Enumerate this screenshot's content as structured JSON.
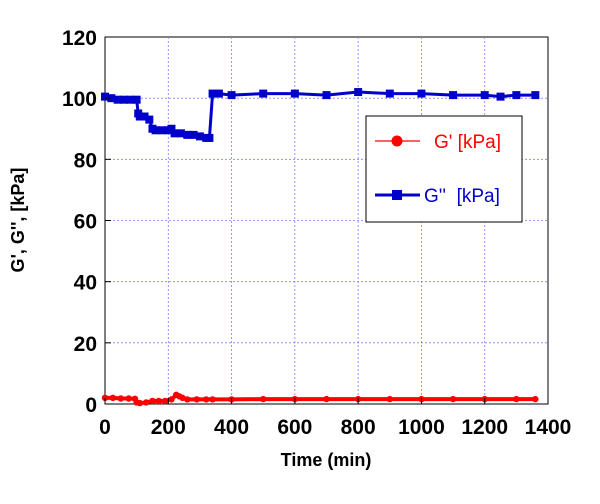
{
  "chart_data": {
    "type": "line",
    "title": "",
    "xlabel": "Time (min)",
    "ylabel": "G', G'', [kPa]",
    "xlim": [
      0,
      1400
    ],
    "ylim": [
      0,
      120
    ],
    "xticks": [
      "0",
      "200",
      "400",
      "600",
      "800",
      "1000",
      "1200",
      "1400"
    ],
    "yticks": [
      "0",
      "20",
      "40",
      "60",
      "80",
      "100",
      "120"
    ],
    "grid": true,
    "legend_position": "right",
    "series": [
      {
        "name": "G' [kPa]",
        "color": "#ff0000",
        "marker": "circle",
        "x": [
          0,
          25,
          50,
          75,
          95,
          100,
          110,
          130,
          150,
          170,
          190,
          210,
          225,
          235,
          245,
          260,
          290,
          320,
          340,
          400,
          500,
          600,
          700,
          800,
          900,
          1000,
          1100,
          1200,
          1300,
          1360
        ],
        "y": [
          2,
          2,
          1.8,
          1.8,
          1.7,
          0.5,
          0.3,
          0.5,
          1,
          1,
          1,
          1.5,
          3,
          2.5,
          2,
          1.5,
          1.5,
          1.5,
          1.5,
          1.5,
          1.6,
          1.6,
          1.6,
          1.6,
          1.6,
          1.6,
          1.6,
          1.6,
          1.6,
          1.6
        ]
      },
      {
        "name": "G''  [kPa]",
        "color": "#0000cc",
        "marker": "square",
        "x": [
          0,
          20,
          40,
          60,
          80,
          100,
          105,
          110,
          125,
          140,
          150,
          160,
          180,
          200,
          210,
          220,
          240,
          260,
          280,
          300,
          320,
          330,
          340,
          360,
          400,
          500,
          600,
          700,
          800,
          900,
          1000,
          1100,
          1200,
          1250,
          1300,
          1360
        ],
        "y": [
          100.5,
          100,
          99.5,
          99.5,
          99.5,
          99.5,
          95,
          94,
          94,
          93,
          90,
          89.5,
          89.5,
          89.5,
          90,
          88.5,
          88.5,
          88,
          88,
          87.5,
          87,
          87,
          101.5,
          101.5,
          101,
          101.5,
          101.5,
          101,
          102,
          101.5,
          101.5,
          101,
          101,
          100.5,
          101,
          101
        ]
      }
    ]
  }
}
